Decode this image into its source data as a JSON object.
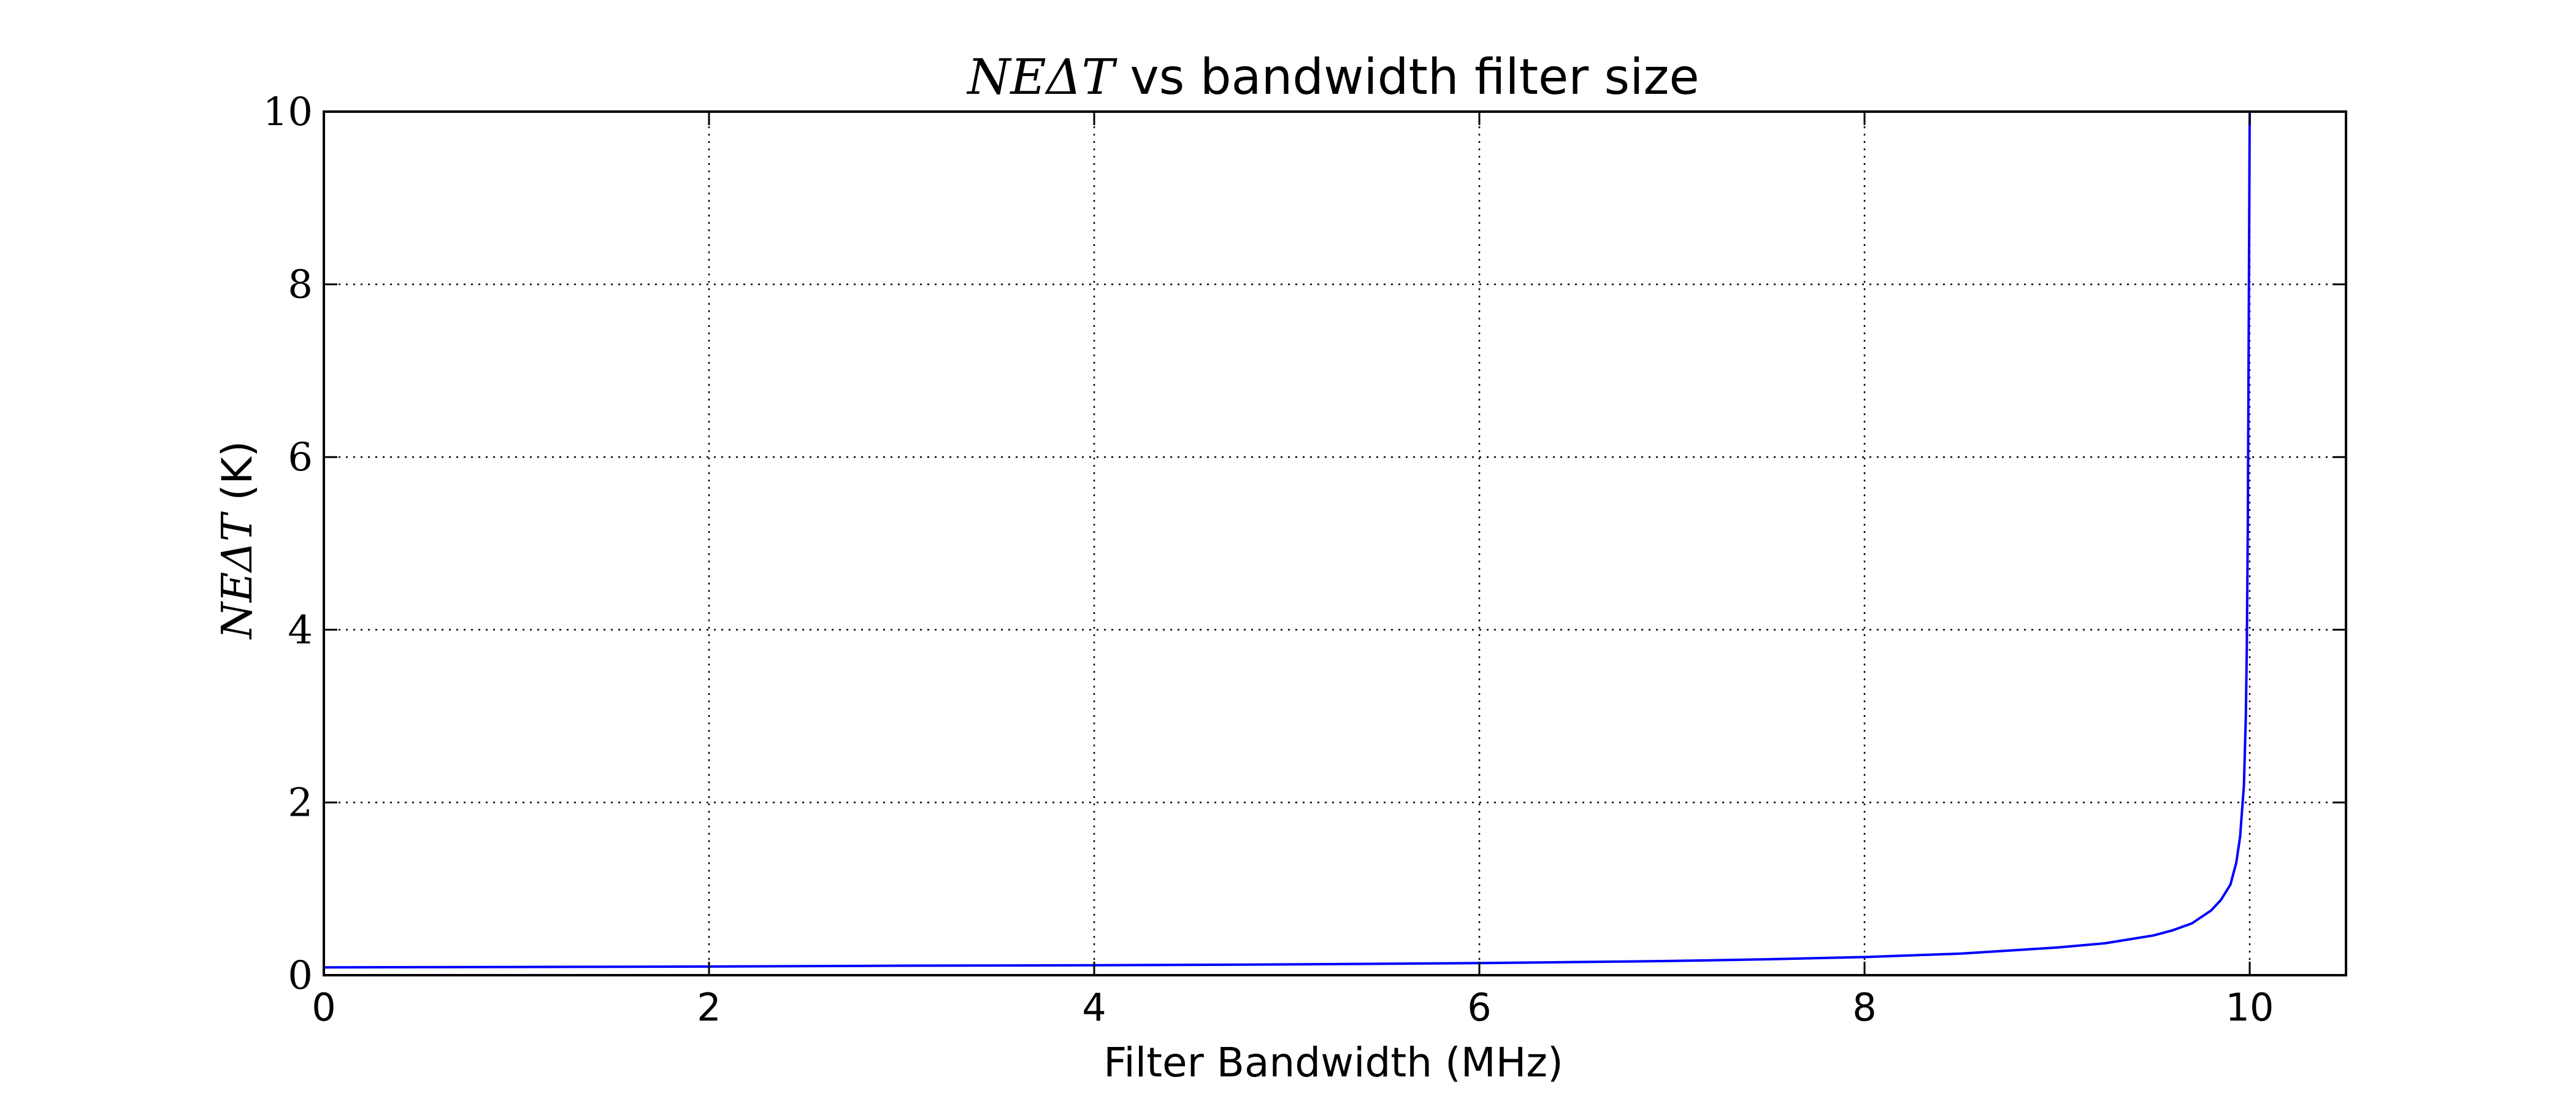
{
  "chart_data": {
    "type": "line",
    "title": {
      "math": "NEΔT",
      "text": " vs bandwidth filter size"
    },
    "xlabel": "Filter Bandwidth (MHz)",
    "ylabel": {
      "math": "NEΔT",
      "text": " (K)"
    },
    "xlim": [
      0,
      10.5
    ],
    "ylim": [
      0,
      10
    ],
    "xticks": [
      "0",
      "2",
      "4",
      "6",
      "8",
      "10"
    ],
    "yticks": [
      "0",
      "2",
      "4",
      "6",
      "8",
      "10"
    ],
    "grid": true,
    "line_color": "#0000ff",
    "series": [
      {
        "x": [
          0,
          1,
          2,
          3,
          4,
          5,
          6,
          7,
          7.5,
          8,
          8.5,
          9,
          9.25,
          9.5,
          9.6,
          9.7,
          9.8,
          9.85,
          9.9,
          9.93,
          9.95,
          9.97,
          9.98,
          9.985,
          9.99,
          9.995,
          10.0
        ],
        "y": [
          0.09,
          0.095,
          0.1,
          0.11,
          0.115,
          0.125,
          0.14,
          0.165,
          0.185,
          0.21,
          0.25,
          0.32,
          0.37,
          0.46,
          0.52,
          0.6,
          0.75,
          0.87,
          1.05,
          1.3,
          1.6,
          2.2,
          3.0,
          3.8,
          5.2,
          7.5,
          10
        ]
      }
    ]
  }
}
